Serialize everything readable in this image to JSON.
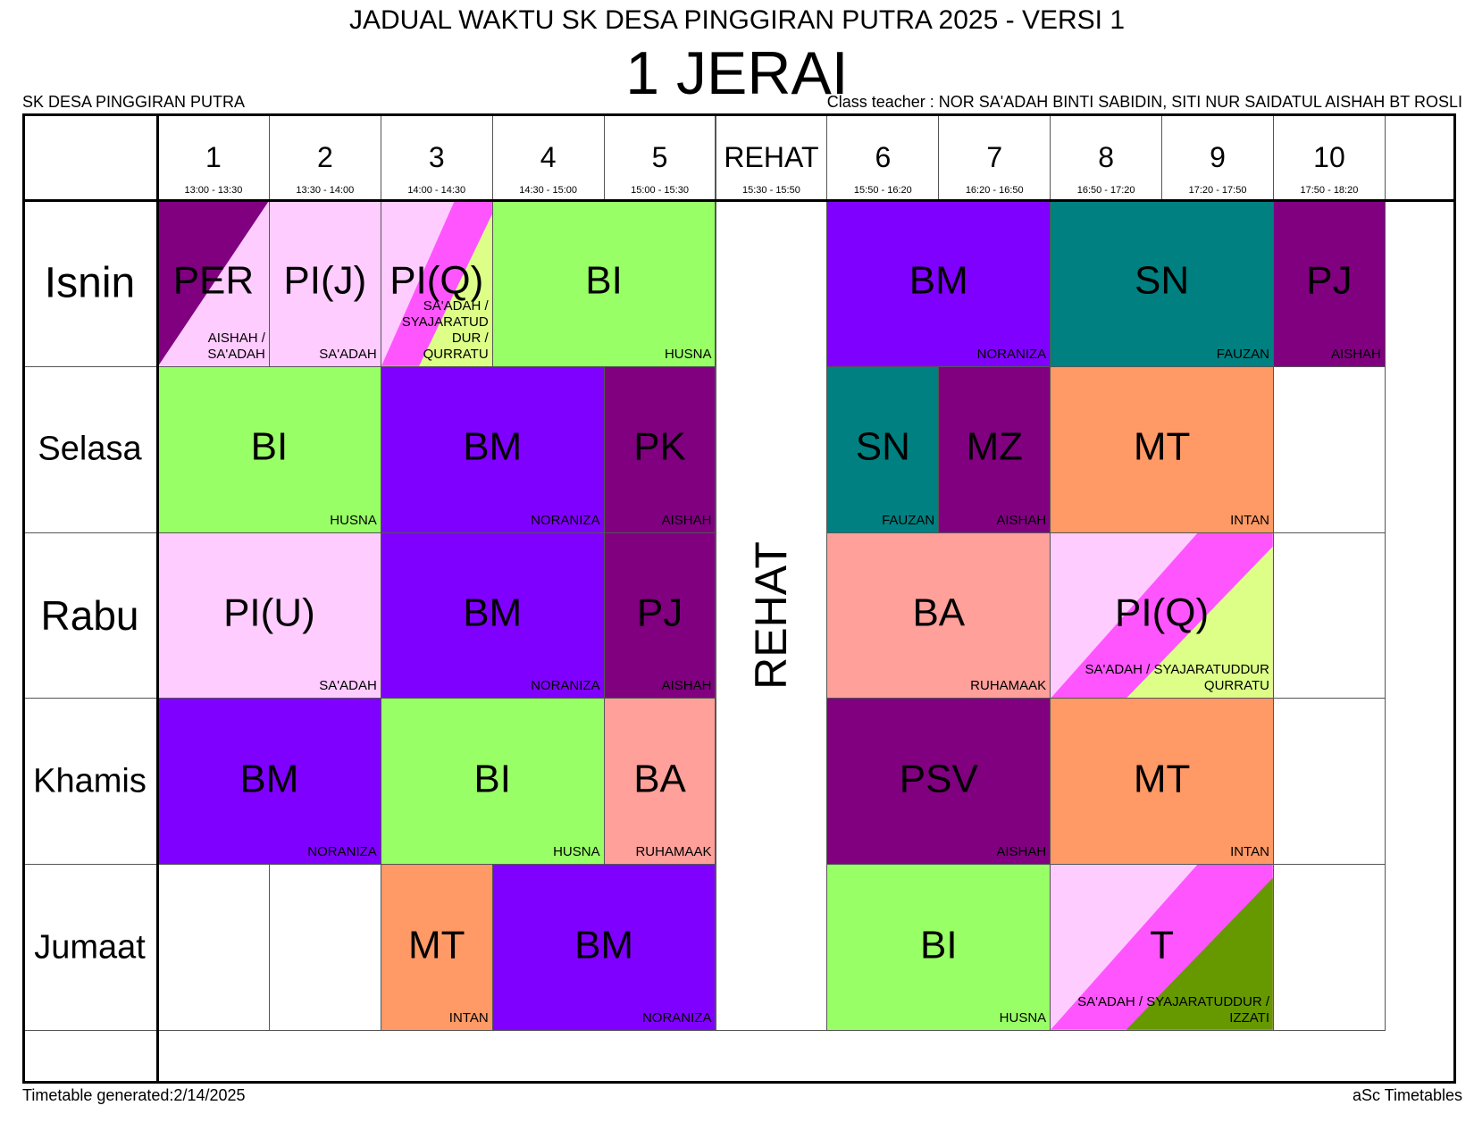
{
  "header": {
    "title": "JADUAL WAKTU SK DESA PINGGIRAN PUTRA 2025 - VERSI 1",
    "class_name": "1 JERAI",
    "school": "SK DESA PINGGIRAN PUTRA",
    "teacher": "Class teacher :  NOR SA'ADAH BINTI SABIDIN,  SITI NUR SAIDATUL  AISHAH BT ROSLI"
  },
  "footer": {
    "generated": "Timetable generated:2/14/2025",
    "brand": "aSc Timetables"
  },
  "colors": {
    "PER": [
      "#800080",
      "#ffccff"
    ],
    "PI(J)": [
      "#ffccff"
    ],
    "PI(Q)": [
      "#ffccff",
      "#ff55ff",
      "#ddff88"
    ],
    "BI": [
      "#99ff66"
    ],
    "BM": [
      "#8000ff"
    ],
    "SN": [
      "#008080"
    ],
    "PJ": [
      "#800080"
    ],
    "PK": [
      "#800080"
    ],
    "MZ": [
      "#800080"
    ],
    "MT": [
      "#ff9966"
    ],
    "PI(U)": [
      "#ffccff"
    ],
    "BA": [
      "#ffa09a"
    ],
    "PSV": [
      "#800080"
    ],
    "T": [
      "#ffccff",
      "#ff55ff",
      "#669900"
    ]
  },
  "periods": [
    {
      "num": "1",
      "time": "13:00 - 13:30"
    },
    {
      "num": "2",
      "time": "13:30 - 14:00"
    },
    {
      "num": "3",
      "time": "14:00 - 14:30"
    },
    {
      "num": "4",
      "time": "14:30 - 15:00"
    },
    {
      "num": "5",
      "time": "15:00 - 15:30"
    },
    {
      "num": "REHAT",
      "time": "15:30 - 15:50"
    },
    {
      "num": "6",
      "time": "15:50 - 16:20"
    },
    {
      "num": "7",
      "time": "16:20 - 16:50"
    },
    {
      "num": "8",
      "time": "16:50 - 17:20"
    },
    {
      "num": "9",
      "time": "17:20 - 17:50"
    },
    {
      "num": "10",
      "time": "17:50 - 18:20"
    }
  ],
  "days": [
    "Isnin",
    "Selasa",
    "Rabu",
    "Khamis",
    "Jumaat"
  ],
  "break_label": "REHAT",
  "lessons": [
    {
      "day": 0,
      "start": 0,
      "span": 1,
      "subject": "PER",
      "teacher": "AISHAH /\nSA'ADAH",
      "style": "diag2"
    },
    {
      "day": 0,
      "start": 1,
      "span": 1,
      "subject": "PI(J)",
      "teacher": "SA'ADAH",
      "style": "solid"
    },
    {
      "day": 0,
      "start": 2,
      "span": 1,
      "subject": "PI(Q)",
      "teacher": "SA'ADAH /\nSYAJARATUD\nDUR /\nQURRATU",
      "style": "diag3"
    },
    {
      "day": 0,
      "start": 3,
      "span": 2,
      "subject": "BI",
      "teacher": "HUSNA",
      "style": "solid"
    },
    {
      "day": 0,
      "start": 6,
      "span": 2,
      "subject": "BM",
      "teacher": "NORANIZA",
      "style": "solid"
    },
    {
      "day": 0,
      "start": 8,
      "span": 2,
      "subject": "SN",
      "teacher": "FAUZAN",
      "style": "solid"
    },
    {
      "day": 0,
      "start": 10,
      "span": 1,
      "subject": "PJ",
      "teacher": "AISHAH",
      "style": "solid"
    },
    {
      "day": 1,
      "start": 0,
      "span": 2,
      "subject": "BI",
      "teacher": "HUSNA",
      "style": "solid"
    },
    {
      "day": 1,
      "start": 2,
      "span": 2,
      "subject": "BM",
      "teacher": "NORANIZA",
      "style": "solid"
    },
    {
      "day": 1,
      "start": 4,
      "span": 1,
      "subject": "PK",
      "teacher": "AISHAH",
      "style": "solid"
    },
    {
      "day": 1,
      "start": 6,
      "span": 1,
      "subject": "SN",
      "teacher": "FAUZAN",
      "style": "solid"
    },
    {
      "day": 1,
      "start": 7,
      "span": 1,
      "subject": "MZ",
      "teacher": "AISHAH",
      "style": "solid"
    },
    {
      "day": 1,
      "start": 8,
      "span": 2,
      "subject": "MT",
      "teacher": "INTAN",
      "style": "solid"
    },
    {
      "day": 2,
      "start": 0,
      "span": 2,
      "subject": "PI(U)",
      "teacher": "SA'ADAH",
      "style": "solid"
    },
    {
      "day": 2,
      "start": 2,
      "span": 2,
      "subject": "BM",
      "teacher": "NORANIZA",
      "style": "solid"
    },
    {
      "day": 2,
      "start": 4,
      "span": 1,
      "subject": "PJ",
      "teacher": "AISHAH",
      "style": "solid"
    },
    {
      "day": 2,
      "start": 6,
      "span": 2,
      "subject": "BA",
      "teacher": "RUHAMAAK",
      "style": "solid"
    },
    {
      "day": 2,
      "start": 8,
      "span": 2,
      "subject": "PI(Q)",
      "teacher": "SA'ADAH / SYAJARATUDDUR\nQURRATU",
      "style": "diag3"
    },
    {
      "day": 3,
      "start": 0,
      "span": 2,
      "subject": "BM",
      "teacher": "NORANIZA",
      "style": "solid"
    },
    {
      "day": 3,
      "start": 2,
      "span": 2,
      "subject": "BI",
      "teacher": "HUSNA",
      "style": "solid"
    },
    {
      "day": 3,
      "start": 4,
      "span": 1,
      "subject": "BA",
      "teacher": "RUHAMAAK",
      "style": "solid"
    },
    {
      "day": 3,
      "start": 6,
      "span": 2,
      "subject": "PSV",
      "teacher": "AISHAH",
      "style": "solid"
    },
    {
      "day": 3,
      "start": 8,
      "span": 2,
      "subject": "MT",
      "teacher": "INTAN",
      "style": "solid"
    },
    {
      "day": 4,
      "start": 2,
      "span": 1,
      "subject": "MT",
      "teacher": "INTAN",
      "style": "solid"
    },
    {
      "day": 4,
      "start": 3,
      "span": 2,
      "subject": "BM",
      "teacher": "NORANIZA",
      "style": "solid"
    },
    {
      "day": 4,
      "start": 6,
      "span": 2,
      "subject": "BI",
      "teacher": "HUSNA",
      "style": "solid"
    },
    {
      "day": 4,
      "start": 8,
      "span": 2,
      "subject": "T",
      "teacher": "SA'ADAH / SYAJARATUDDUR /\nIZZATI",
      "style": "diag3"
    }
  ]
}
